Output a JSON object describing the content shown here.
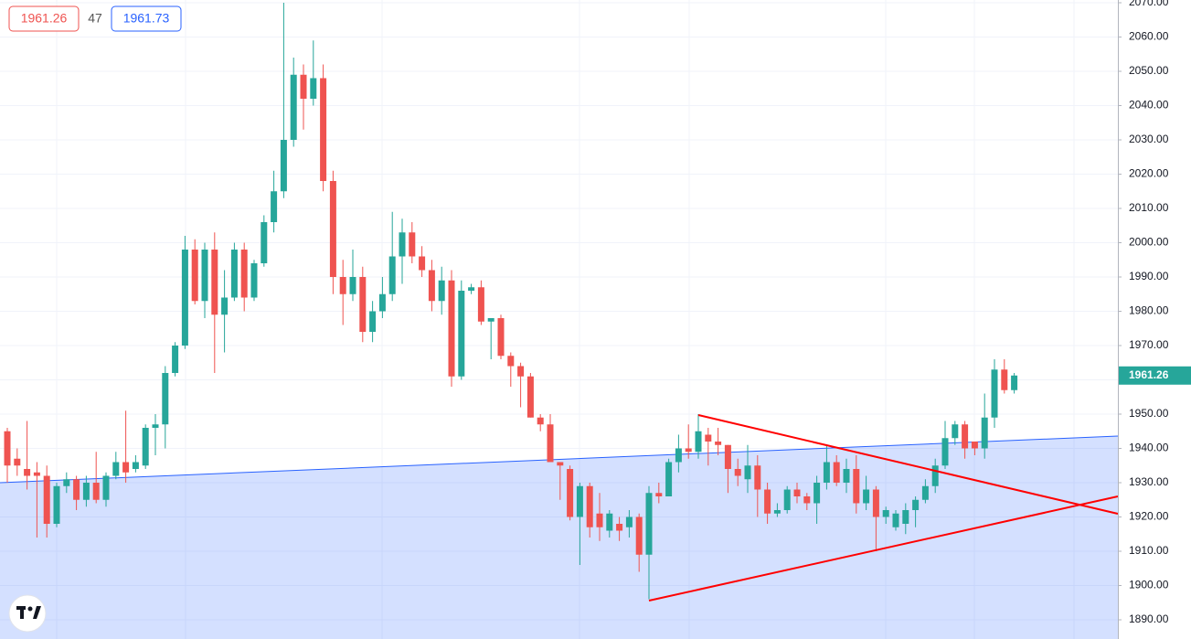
{
  "chart_data": {
    "type": "candlestick",
    "up_color": "#26a69a",
    "down_color": "#ef5350",
    "header": {
      "bid": "1961.26",
      "spread": "47",
      "ask": "1961.73"
    },
    "last_label": "1961.26",
    "ylim": [
      1884.4,
      2070.8
    ],
    "yticks": [
      {
        "value": 1890,
        "label": "1890.00"
      },
      {
        "value": 1900,
        "label": "1900.00"
      },
      {
        "value": 1910,
        "label": "1910.00"
      },
      {
        "value": 1920,
        "label": "1920.00"
      },
      {
        "value": 1930,
        "label": "1930.00"
      },
      {
        "value": 1940,
        "label": "1940.00"
      },
      {
        "value": 1950,
        "label": "1950.00"
      },
      {
        "value": 1960,
        "label": "1960.00"
      },
      {
        "value": 1970,
        "label": "1970.00"
      },
      {
        "value": 1980,
        "label": "1980.00"
      },
      {
        "value": 1990,
        "label": "1990.00"
      },
      {
        "value": 2000,
        "label": "2000.00"
      },
      {
        "value": 2010,
        "label": "2010.00"
      },
      {
        "value": 2020,
        "label": "2020.00"
      },
      {
        "value": 2030,
        "label": "2030.00"
      },
      {
        "value": 2040,
        "label": "2040.00"
      },
      {
        "value": 2050,
        "label": "2050.00"
      },
      {
        "value": 2060,
        "label": "2060.00"
      },
      {
        "value": 2070,
        "label": "2070.00"
      }
    ],
    "grid": true,
    "open": [
      1945,
      1937,
      1934,
      1933,
      1932,
      1918,
      1929,
      1931,
      1925,
      1930,
      1925,
      1932,
      1936,
      1934,
      1935,
      1946,
      1947,
      1962,
      1970,
      1998,
      1983,
      1998,
      1979,
      1984,
      1998,
      1984,
      1994,
      2006,
      2015,
      2030,
      2049,
      2042,
      2048,
      2018,
      1990,
      1985,
      1990,
      1974,
      1980,
      1985,
      1996,
      2003,
      1996,
      1992,
      1983,
      1989,
      1961,
      1986,
      1987,
      1977,
      1978,
      1967,
      1964,
      1961,
      1949,
      1947,
      1936,
      1934,
      1920,
      1929,
      1921,
      1916,
      1918,
      1917,
      1920,
      1909,
      1927,
      1926,
      1936,
      1940,
      1939,
      1944,
      1942,
      1941,
      1934,
      1931,
      1935,
      1928,
      1921,
      1922,
      1928,
      1926,
      1924,
      1930,
      1936,
      1930,
      1934,
      1924,
      1928,
      1920,
      1917,
      1918,
      1922,
      1925,
      1929,
      1935,
      1943,
      1947,
      1942,
      1940,
      1949,
      1963,
      1957
    ],
    "high": [
      1946,
      1940,
      1948,
      1936,
      1935,
      1930,
      1933,
      1932,
      1932,
      1939,
      1933,
      1939,
      1951,
      1938,
      1947,
      1950,
      1964,
      1971,
      2002,
      2001,
      2000,
      2003,
      1992,
      2000,
      2000,
      1995,
      2008,
      2021,
      2070,
      2054,
      2052,
      2059,
      2052,
      2021,
      1995,
      1998,
      1993,
      1983,
      1990,
      2009,
      2007,
      2006,
      1999,
      1995,
      1993,
      1992,
      1989,
      1988,
      1989,
      1978,
      1979,
      1968,
      1965,
      1962,
      1950,
      1950,
      1936,
      1935,
      1930,
      1930,
      1927,
      1922,
      1920,
      1922,
      1921,
      1929,
      1930,
      1937,
      1944,
      1947,
      1950,
      1946,
      1946,
      1941,
      1937,
      1941,
      1938,
      1930,
      1924,
      1929,
      1930,
      1927,
      1932,
      1941,
      1938,
      1937,
      1938,
      1932,
      1929,
      1923,
      1922,
      1924,
      1926,
      1931,
      1937,
      1948,
      1948,
      1948,
      1942,
      1956,
      1966,
      1966,
      1962
    ],
    "low": [
      1930,
      1932,
      1928,
      1914,
      1914,
      1917,
      1927,
      1922,
      1923,
      1924,
      1923,
      1931,
      1930,
      1933,
      1934,
      1938,
      1940,
      1961,
      1969,
      1982,
      1978,
      1962,
      1968,
      1983,
      1980,
      1983,
      1993,
      2003,
      2013,
      2028,
      2033,
      2040,
      2015,
      1985,
      1976,
      1983,
      1971,
      1971,
      1978,
      1983,
      1988,
      1994,
      1990,
      1980,
      1979,
      1958,
      1960,
      1985,
      1976,
      1966,
      1966,
      1958,
      1952,
      1949,
      1945,
      1936,
      1925,
      1919,
      1906,
      1914,
      1913,
      1914,
      1913,
      1914,
      1904,
      1896,
      1924,
      1926,
      1933,
      1937,
      1937,
      1935,
      1938,
      1927,
      1929,
      1927,
      1920,
      1918,
      1920,
      1921,
      1924,
      1922,
      1918,
      1928,
      1929,
      1927,
      1921,
      1922,
      1910,
      1918,
      1916,
      1915,
      1917,
      1924,
      1927,
      1934,
      1941,
      1937,
      1938,
      1937,
      1946,
      1956,
      1956
    ],
    "close": [
      1935,
      1935,
      1932,
      1932,
      1918,
      1929,
      1931,
      1925,
      1930,
      1925,
      1932,
      1936,
      1933,
      1936,
      1946,
      1947,
      1962,
      1970,
      1998,
      1983,
      1998,
      1979,
      1984,
      1998,
      1984,
      1994,
      2006,
      2015,
      2030,
      2049,
      2042,
      2048,
      2018,
      1990,
      1985,
      1990,
      1974,
      1980,
      1985,
      1996,
      2003,
      1996,
      1992,
      1983,
      1989,
      1961,
      1986,
      1987,
      1977,
      1978,
      1967,
      1964,
      1961,
      1949,
      1947,
      1936,
      1935,
      1920,
      1929,
      1917,
      1917,
      1921,
      1916,
      1920,
      1909,
      1927,
      1926,
      1936,
      1940,
      1939,
      1945,
      1942,
      1941,
      1934,
      1932,
      1935,
      1928,
      1921,
      1922,
      1928,
      1926,
      1924,
      1930,
      1936,
      1930,
      1934,
      1924,
      1928,
      1920,
      1922,
      1921,
      1922,
      1925,
      1929,
      1935,
      1943,
      1947,
      1940,
      1940,
      1949,
      1963,
      1957,
      1961.26
    ]
  }
}
